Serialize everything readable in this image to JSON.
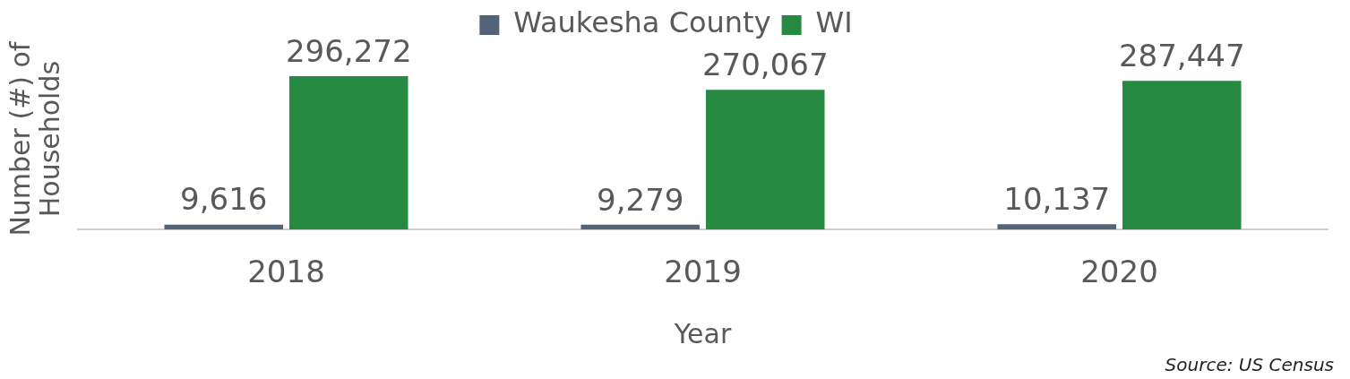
{
  "chart_data": {
    "type": "bar",
    "xlabel": "Year",
    "ylabel": "Number (#) of Households",
    "categories": [
      "2018",
      "2019",
      "2020"
    ],
    "series": [
      {
        "name": "Waukesha County",
        "color": "#536378",
        "values": [
          9616,
          9279,
          10137
        ],
        "value_labels": [
          "9,616",
          "9,279",
          "10,137"
        ]
      },
      {
        "name": "WI",
        "color": "#268a43",
        "values": [
          296272,
          270067,
          287447
        ],
        "value_labels": [
          "296,272",
          "270,067",
          "287,447"
        ]
      }
    ],
    "legend": "top",
    "grid": false,
    "annotations": [
      "Source: US Census"
    ]
  }
}
